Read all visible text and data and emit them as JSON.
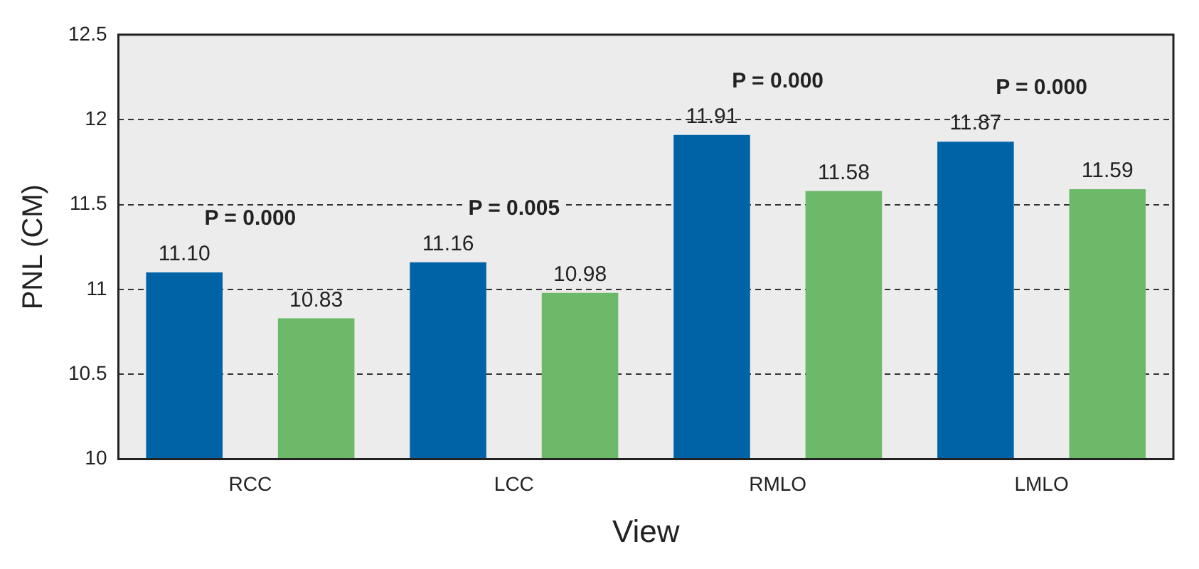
{
  "chart_data": {
    "type": "bar",
    "xlabel": "View",
    "ylabel": "PNL (CM)",
    "categories": [
      "RCC",
      "LCC",
      "RMLO",
      "LMLO"
    ],
    "series": [
      {
        "color": "#0063a6",
        "values": [
          11.1,
          11.16,
          11.91,
          11.87
        ],
        "value_labels": [
          "11.10",
          "11.16",
          "11.91",
          "11.87"
        ]
      },
      {
        "color": "#6db96a",
        "values": [
          10.83,
          10.98,
          11.58,
          11.59
        ],
        "value_labels": [
          "10.83",
          "10.98",
          "11.58",
          "11.59"
        ]
      }
    ],
    "ylim": [
      10,
      12.5
    ],
    "yticks": [
      10,
      10.5,
      11,
      11.5,
      12,
      12.5
    ],
    "grid": "y",
    "legend": false,
    "annotations": [
      "P = 0.000",
      "P = 0.005",
      "P = 0.000",
      "P = 0.000"
    ]
  }
}
